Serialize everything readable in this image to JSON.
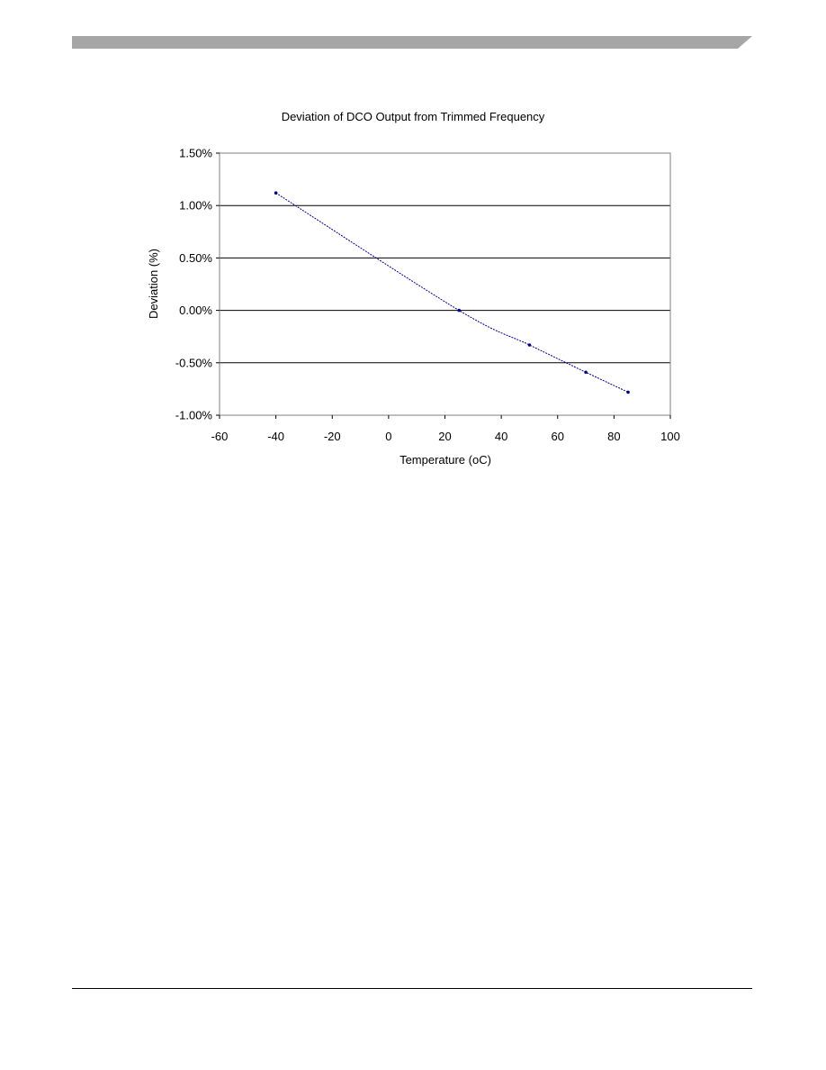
{
  "colors": {
    "header_bar": "#a6a6a6",
    "series_line": "#00008b",
    "gridline": "#000000",
    "plot_border": "#808080",
    "footer_rule": "#000000"
  },
  "chart_data": {
    "type": "scatter",
    "title": "Deviation of DCO Output from Trimmed Frequency",
    "xlabel": "Temperature (oC)",
    "ylabel": "Deviation (%)",
    "xlim": [
      -60,
      100
    ],
    "ylim": [
      -1.0,
      1.5
    ],
    "x_ticks": [
      -60,
      -40,
      -20,
      0,
      20,
      40,
      60,
      80,
      100
    ],
    "x_tick_labels": [
      "-60",
      "-40",
      "-20",
      "0",
      "20",
      "40",
      "60",
      "80",
      "100"
    ],
    "y_ticks": [
      -1.0,
      -0.5,
      0.0,
      0.5,
      1.0,
      1.5
    ],
    "y_tick_labels": [
      "-1.00%",
      "-0.50%",
      "0.00%",
      "0.50%",
      "1.00%",
      "1.50%"
    ],
    "grid": "horizontal",
    "legend": "none",
    "series": [
      {
        "x": [
          -40,
          25,
          50,
          70,
          85
        ],
        "y": [
          1.12,
          0.0,
          -0.33,
          -0.59,
          -0.78
        ],
        "style": "smoothed line with markers"
      }
    ]
  }
}
